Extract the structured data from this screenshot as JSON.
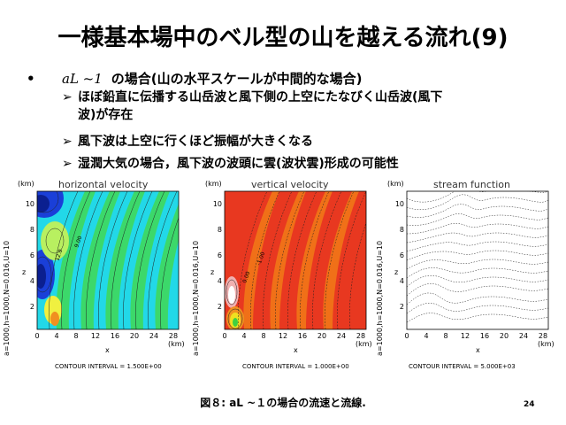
{
  "slide": {
    "title": "一様基本場中のベル型の山を越える流れ(9)",
    "bullet": {
      "formula": "aL ~1",
      "text": "の場合(山の水平スケールが中間的な場合)"
    },
    "subitems": [
      {
        "line1": "ほぼ鉛直に伝播する山岳波と風下側の上空にたなびく山岳波(風下",
        "line2": "波)が存在"
      },
      {
        "line1": "風下波は上空に行くほど振幅が大きくなる",
        "line2": ""
      },
      {
        "line1": "湿潤大気の場合，風下波の波頭に雲(波状雲)形成の可能性",
        "line2": ""
      }
    ],
    "caption": "図８: aL ~１の場合の流速と流線.",
    "page_number": "24"
  },
  "panels": {
    "side_label": "a=1000,h=1000,N=0.016,U=10",
    "x_unit": "(km)",
    "z_unit": "(km)",
    "x_label": "x",
    "z_label": "z",
    "x_ticks": [
      "0",
      "4",
      "8",
      "12",
      "16",
      "20",
      "24",
      "28"
    ],
    "z_ticks": [
      "2",
      "4",
      "6",
      "8",
      "10"
    ],
    "left": {
      "title": "horizontal velocity",
      "contour": "CONTOUR INTERVAL = 1.500E+00",
      "labels": [
        "12.0",
        "9.00"
      ]
    },
    "middle": {
      "title": "vertical velocity",
      "contour": "CONTOUR INTERVAL = 1.000E+00",
      "labels": [
        "0.00",
        "-1.00"
      ]
    },
    "right": {
      "title": "stream function",
      "contour": "CONTOUR INTERVAL = 5.000E+03"
    }
  },
  "colors": {
    "cyan": "#22d8e8",
    "green": "#3cd86a",
    "blue": "#1a3fd8",
    "red": "#e83820",
    "orange": "#f07018",
    "yellow": "#f0e020"
  }
}
